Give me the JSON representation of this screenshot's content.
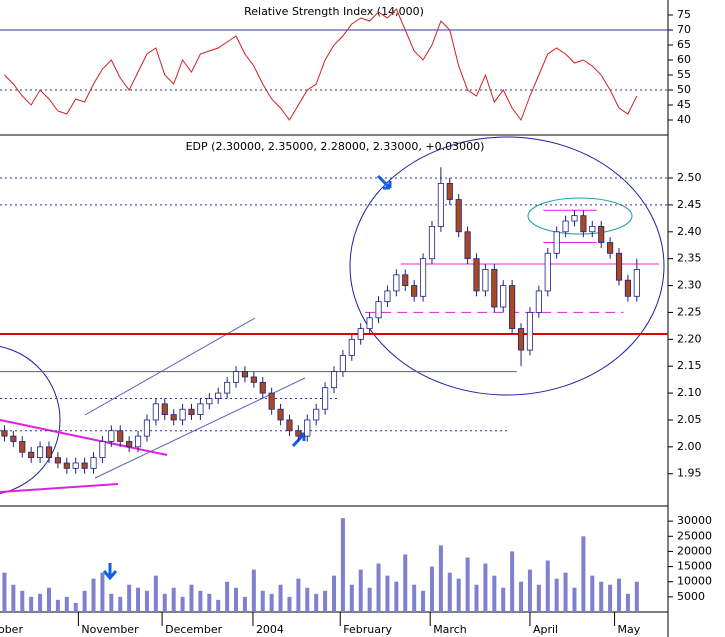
{
  "chart_data": [
    {
      "type": "line",
      "title": "Relative Strength Index (14,000)",
      "color": "#d02020",
      "values": [
        55,
        52,
        48,
        45,
        50,
        47,
        43,
        42,
        47,
        46,
        52,
        57,
        60,
        54,
        50,
        56,
        62,
        64,
        55,
        52,
        60,
        56,
        62,
        63,
        64,
        66,
        68,
        62,
        58,
        52,
        47,
        44,
        40,
        45,
        50,
        52,
        60,
        65,
        68,
        72,
        74,
        73,
        76,
        74,
        77,
        70,
        63,
        60,
        65,
        73,
        70,
        58,
        50,
        48,
        55,
        46,
        50,
        44,
        40,
        48,
        55,
        62,
        64,
        62,
        59,
        60,
        58,
        55,
        50,
        44,
        42,
        48
      ],
      "xlim": [
        0,
        75
      ],
      "ylim": [
        35,
        80
      ],
      "yticks": [
        40,
        45,
        50,
        55,
        60,
        65,
        70,
        75
      ],
      "hlines": [
        {
          "value": 70,
          "color": "#3030a0",
          "style": "solid"
        },
        {
          "value": 50,
          "color": "#3030a0",
          "style": "dotted"
        }
      ]
    },
    {
      "type": "candlestick",
      "title": "EDP (2.30000, 2.35000, 2.28000, 2.33000, +0.03000)",
      "up_color": "#ffffff",
      "down_color": "#a84a20",
      "edge_color": "#202080",
      "open": [
        2.03,
        2.02,
        2.01,
        1.99,
        1.98,
        2.0,
        1.98,
        1.97,
        1.96,
        1.97,
        1.96,
        1.98,
        2.01,
        2.03,
        2.01,
        2.0,
        2.02,
        2.05,
        2.08,
        2.06,
        2.05,
        2.07,
        2.06,
        2.08,
        2.09,
        2.1,
        2.12,
        2.14,
        2.13,
        2.12,
        2.1,
        2.07,
        2.05,
        2.03,
        2.02,
        2.05,
        2.07,
        2.11,
        2.14,
        2.17,
        2.2,
        2.22,
        2.24,
        2.27,
        2.29,
        2.32,
        2.3,
        2.28,
        2.35,
        2.41,
        2.49,
        2.46,
        2.4,
        2.35,
        2.29,
        2.33,
        2.26,
        2.3,
        2.22,
        2.18,
        2.25,
        2.29,
        2.36,
        2.4,
        2.42,
        2.43,
        2.4,
        2.41,
        2.38,
        2.36,
        2.31,
        2.28
      ],
      "high": [
        2.04,
        2.03,
        2.02,
        2.0,
        2.01,
        2.01,
        1.99,
        1.98,
        1.98,
        1.98,
        1.99,
        2.02,
        2.04,
        2.04,
        2.02,
        2.03,
        2.06,
        2.09,
        2.09,
        2.07,
        2.08,
        2.08,
        2.09,
        2.1,
        2.11,
        2.13,
        2.15,
        2.15,
        2.14,
        2.13,
        2.11,
        2.08,
        2.06,
        2.04,
        2.06,
        2.08,
        2.12,
        2.15,
        2.18,
        2.21,
        2.23,
        2.25,
        2.28,
        2.3,
        2.33,
        2.33,
        2.31,
        2.36,
        2.42,
        2.52,
        2.5,
        2.47,
        2.41,
        2.36,
        2.34,
        2.34,
        2.31,
        2.31,
        2.23,
        2.26,
        2.3,
        2.37,
        2.41,
        2.43,
        2.44,
        2.44,
        2.42,
        2.42,
        2.39,
        2.37,
        2.32,
        2.35
      ],
      "low": [
        2.01,
        2.0,
        1.98,
        1.97,
        1.97,
        1.97,
        1.96,
        1.95,
        1.95,
        1.95,
        1.95,
        1.97,
        2.0,
        2.0,
        1.99,
        1.99,
        2.01,
        2.04,
        2.05,
        2.04,
        2.04,
        2.05,
        2.05,
        2.07,
        2.08,
        2.09,
        2.11,
        2.12,
        2.11,
        2.09,
        2.06,
        2.04,
        2.02,
        2.01,
        2.01,
        2.04,
        2.06,
        2.1,
        2.13,
        2.16,
        2.19,
        2.21,
        2.23,
        2.26,
        2.28,
        2.29,
        2.27,
        2.27,
        2.34,
        2.4,
        2.45,
        2.39,
        2.34,
        2.28,
        2.28,
        2.25,
        2.25,
        2.21,
        2.15,
        2.17,
        2.24,
        2.28,
        2.35,
        2.39,
        2.41,
        2.39,
        2.39,
        2.37,
        2.35,
        2.3,
        2.27,
        2.27
      ],
      "close": [
        2.02,
        2.01,
        1.99,
        1.98,
        2.0,
        1.98,
        1.97,
        1.96,
        1.97,
        1.96,
        1.98,
        2.01,
        2.03,
        2.01,
        2.0,
        2.02,
        2.05,
        2.08,
        2.06,
        2.05,
        2.07,
        2.06,
        2.08,
        2.09,
        2.1,
        2.12,
        2.14,
        2.13,
        2.12,
        2.1,
        2.07,
        2.05,
        2.03,
        2.02,
        2.05,
        2.07,
        2.11,
        2.14,
        2.17,
        2.2,
        2.22,
        2.24,
        2.27,
        2.29,
        2.32,
        2.3,
        2.28,
        2.35,
        2.41,
        2.49,
        2.46,
        2.4,
        2.35,
        2.29,
        2.33,
        2.26,
        2.3,
        2.22,
        2.18,
        2.25,
        2.29,
        2.36,
        2.4,
        2.42,
        2.43,
        2.4,
        2.41,
        2.38,
        2.36,
        2.31,
        2.28,
        2.33
      ],
      "xlim": [
        0,
        75
      ],
      "ylim": [
        1.89,
        2.58
      ],
      "yticks": [
        1.95,
        {
          "value": 2.0,
          "label": "2.00"
        },
        2.05,
        {
          "value": 2.1,
          "label": "2.10"
        },
        2.15,
        {
          "value": 2.2,
          "label": "2.20"
        },
        2.25,
        {
          "value": 2.3,
          "label": "2.30"
        },
        2.35,
        {
          "value": 2.4,
          "label": "2.40"
        },
        2.45,
        {
          "value": 2.5,
          "label": "2.50"
        }
      ],
      "hlines": [
        {
          "value": 2.5,
          "color": "#3030a0",
          "style": "dotted",
          "from": 0,
          "to": 75
        },
        {
          "value": 2.45,
          "color": "#3030a0",
          "style": "dotted",
          "from": 0,
          "to": 75
        },
        {
          "value": 2.21,
          "color": "#e00000",
          "style": "thick",
          "from": 0,
          "to": 75
        },
        {
          "value": 2.14,
          "color": "#5050c0",
          "style": "solid",
          "from": 0,
          "to": 58
        },
        {
          "value": 2.09,
          "color": "#3030a0",
          "style": "dotted",
          "from": 0,
          "to": 38
        },
        {
          "value": 2.03,
          "color": "#3030a0",
          "style": "dotted",
          "from": 0,
          "to": 57
        },
        {
          "value": 2.34,
          "color": "#e020e0",
          "style": "solid",
          "from": 45,
          "to": 74
        },
        {
          "value": 2.25,
          "color": "#e020e0",
          "style": "dashed",
          "from": 41,
          "to": 70
        },
        {
          "value": 2.44,
          "color": "#e020e0",
          "style": "solid",
          "from": 61,
          "to": 67
        },
        {
          "value": 2.38,
          "color": "#e020e0",
          "style": "solid",
          "from": 61,
          "to": 67
        }
      ]
    },
    {
      "type": "bar",
      "color": "#8080d0",
      "values": [
        13000,
        9000,
        7000,
        5000,
        6000,
        8000,
        4000,
        5000,
        3000,
        7000,
        11000,
        13000,
        6000,
        5000,
        9000,
        8000,
        7000,
        12000,
        6000,
        8000,
        5000,
        9000,
        7000,
        6000,
        4000,
        10000,
        8000,
        5000,
        14000,
        7000,
        6000,
        9000,
        5000,
        11000,
        8000,
        6000,
        7000,
        12000,
        31000,
        9000,
        14000,
        8000,
        16000,
        12000,
        10000,
        19000,
        9000,
        7000,
        15000,
        22000,
        13000,
        11000,
        18000,
        9000,
        16000,
        12000,
        8000,
        20000,
        10000,
        14000,
        9000,
        17000,
        11000,
        13000,
        8000,
        25000,
        12000,
        10000,
        9000,
        11000,
        6000,
        10000
      ],
      "xlim": [
        0,
        75
      ],
      "ylim": [
        0,
        35000
      ],
      "yticks": [
        5000,
        10000,
        15000,
        20000,
        25000,
        30000
      ],
      "xticks": [
        {
          "value": -2.7,
          "label": "October"
        },
        {
          "value": 8.8,
          "label": "November"
        },
        {
          "value": 18.2,
          "label": "December"
        },
        {
          "value": 28.4,
          "label": "2004"
        },
        {
          "value": 38.2,
          "label": "February"
        },
        {
          "value": 48.3,
          "label": "March"
        },
        {
          "value": 59.5,
          "label": "April"
        },
        {
          "value": 69,
          "label": "May"
        }
      ]
    }
  ]
}
